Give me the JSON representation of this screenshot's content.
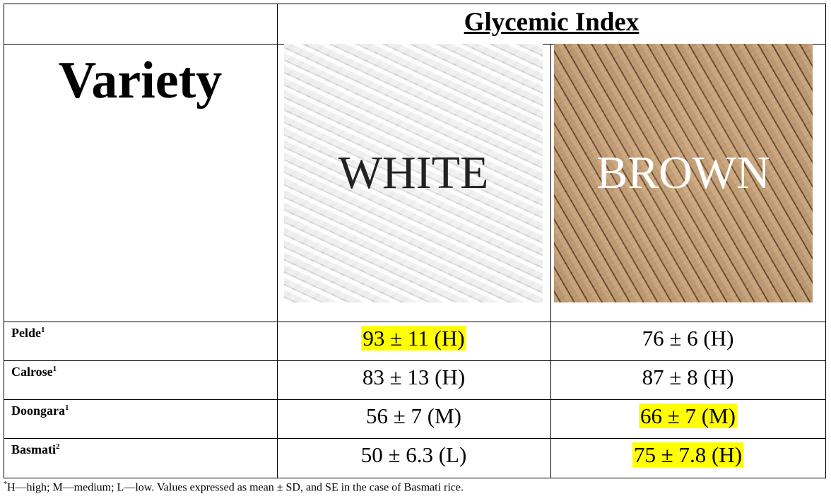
{
  "header": {
    "title": "Glycemic Index",
    "variety": "Variety"
  },
  "columns": [
    "WHITE",
    "BROWN"
  ],
  "rows": [
    {
      "name": "Pelde",
      "ref": "1",
      "white": "93 ± 11 (H)",
      "brown": "76 ± 6 (H)"
    },
    {
      "name": "Calrose",
      "ref": "1",
      "white": "83 ± 13 (H)",
      "brown": "87 ± 8 (H)"
    },
    {
      "name": "Doongara",
      "ref": "1",
      "white": "56 ± 7 (M)",
      "brown": "66 ± 7 (M)"
    },
    {
      "name": "Basmati",
      "ref": "2",
      "white": "50 ± 6.3 (L)",
      "brown": "75 ± 7.8 (H)"
    }
  ],
  "footnote": {
    "mark": "*",
    "text": "H—high; M—medium; L—low. Values expressed as mean ± SD, and SE in the case of Basmati rice."
  }
}
